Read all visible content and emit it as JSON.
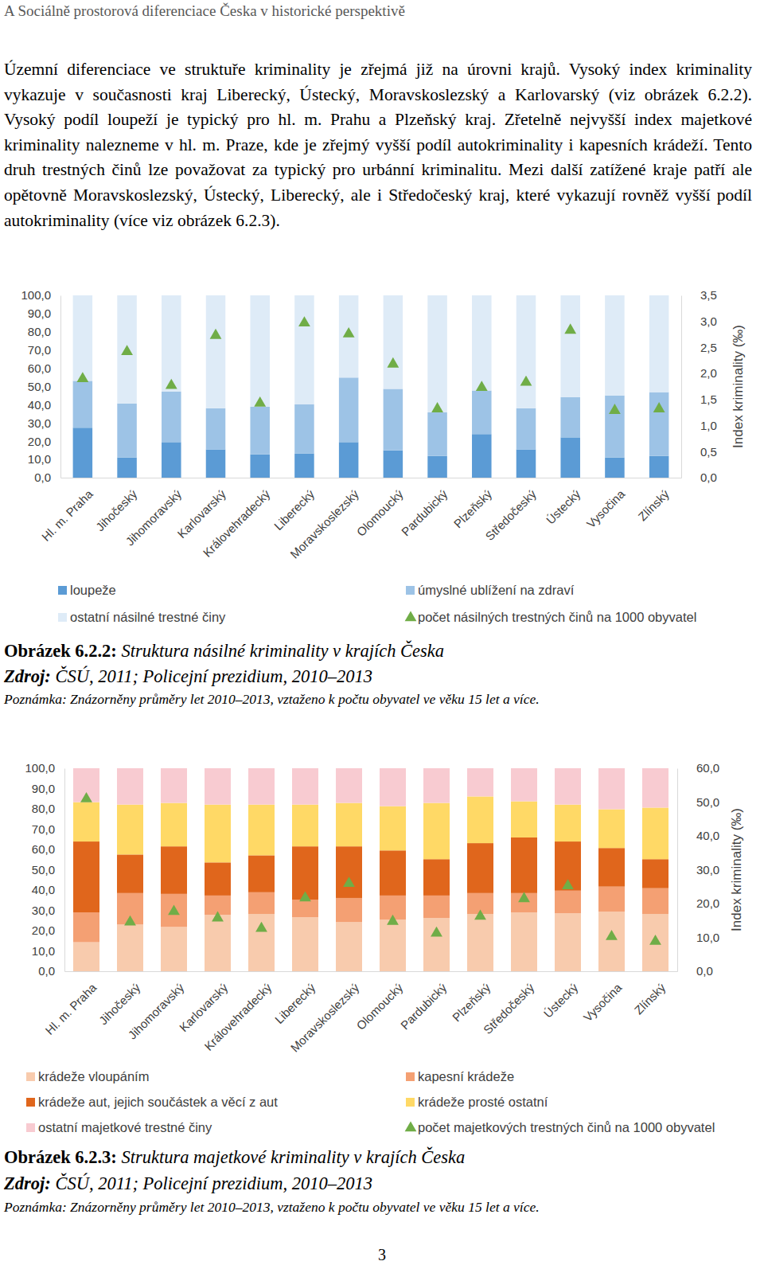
{
  "header": "A Sociálně prostorová diferenciace Česka v historické perspektivě",
  "paragraph": "Územní diferenciace ve struktuře kriminality je zřejmá již na úrovni krajů. Vysoký index kriminality vykazuje v současnosti kraj Liberecký, Ústecký, Moravskoslezský a Karlovarský (viz obrázek 6.2.2). Vysoký podíl loupeží je typický pro hl. m. Prahu a Plzeňský kraj. Zřetelně nejvyšší index majetkové kriminality nalezneme v hl. m. Praze, kde je zřejmý vyšší podíl autokriminality i kapesních krádeží. Tento druh trestných činů lze považovat za typický pro urbánní kriminalitu. Mezi další zatížené kraje patří ale opětovně Moravskoslezský, Ústecký, Liberecký, ale i Středočeský kraj, které vykazují rovněž vyšší podíl autokriminality (více viz obrázek 6.2.3).",
  "chart_data": [
    {
      "type": "bar",
      "stacked": true,
      "grid": false,
      "legend": "bottom",
      "caption_label": "Obrázek 6.2.2:",
      "title": "Struktura násilné kriminality v krajích Česka",
      "source_label": "Zdroj:",
      "source": "ČSÚ, 2011; Policejní prezidium, 2010–2013",
      "note": "Poznámka: Znázorněny průměry let 2010–2013, vztaženo k počtu obyvatel ve věku 15 let a více.",
      "categories": [
        "Hl. m. Praha",
        "Jihočeský",
        "Jihomoravský",
        "Karlovarský",
        "Královehradecký",
        "Liberecký",
        "Moravskoslezský",
        "Olomoucký",
        "Pardubický",
        "Plzeňský",
        "Středočeský",
        "Ústecký",
        "Vysočina",
        "Zlínský"
      ],
      "series": [
        {
          "name": "loupeže",
          "color": "#5b9bd5",
          "values": [
            27.4,
            11.1,
            19.5,
            15.5,
            12.8,
            13.3,
            19.5,
            15.0,
            11.9,
            23.9,
            15.5,
            22.1,
            11.1,
            11.9
          ]
        },
        {
          "name": "úmyslné ublížení na zdraví",
          "color": "#9dc3e6",
          "values": [
            25.7,
            29.6,
            27.8,
            22.6,
            26.1,
            27.0,
            35.4,
            33.7,
            23.9,
            23.9,
            22.6,
            22.1,
            34.0,
            35.0
          ]
        },
        {
          "name": "ostatní násilné trestné činy",
          "color": "#deebf7",
          "values": [
            46.9,
            59.3,
            52.7,
            61.9,
            61.1,
            59.7,
            45.1,
            51.3,
            64.2,
            52.2,
            61.9,
            55.8,
            54.9,
            53.1
          ]
        },
        {
          "name": "počet násilných trestných činů na 1000 obyvatel",
          "color": "#70ad47",
          "type": "scatter",
          "marker": "triangle",
          "axis": "y2",
          "values": [
            1.93,
            2.45,
            1.8,
            2.76,
            1.46,
            3.0,
            2.79,
            2.21,
            1.35,
            1.76,
            1.86,
            2.86,
            1.32,
            1.35
          ]
        }
      ],
      "ylim": [
        0,
        100
      ],
      "yticks": [
        {
          "value": 0,
          "label": "0,0"
        },
        {
          "value": 10,
          "label": "10,0"
        },
        {
          "value": 20,
          "label": "20,0"
        },
        {
          "value": 30,
          "label": "30,0"
        },
        {
          "value": 40,
          "label": "40,0"
        },
        {
          "value": 50,
          "label": "50,0"
        },
        {
          "value": 60,
          "label": "60,0"
        },
        {
          "value": 70,
          "label": "70,0"
        },
        {
          "value": 80,
          "label": "80,0"
        },
        {
          "value": 90,
          "label": "90,0"
        },
        {
          "value": 100,
          "label": "100,0"
        }
      ],
      "y2lim": [
        0,
        3.5
      ],
      "y2ticks": [
        {
          "value": 0,
          "label": "0,0"
        },
        {
          "value": 0.5,
          "label": "0,5"
        },
        {
          "value": 1,
          "label": "1,0"
        },
        {
          "value": 1.5,
          "label": "1,5"
        },
        {
          "value": 2,
          "label": "2,0"
        },
        {
          "value": 2.5,
          "label": "2,5"
        },
        {
          "value": 3,
          "label": "3,0"
        },
        {
          "value": 3.5,
          "label": "3,5"
        }
      ],
      "y2_label": "Index kriminality (‰)"
    },
    {
      "type": "bar",
      "stacked": true,
      "grid": false,
      "legend": "bottom",
      "caption_label": "Obrázek 6.2.3:",
      "title": "Struktura majetkové kriminality v krajích Česka",
      "source_label": "Zdroj:",
      "source": "ČSÚ, 2011; Policejní prezidium, 2010–2013",
      "note": "Poznámka: Znázorněny průměry let 2010–2013, vztaženo k počtu obyvatel ve věku 15 let a více.",
      "categories": [
        "Hl. m. Praha",
        "Jihočeský",
        "Jihomoravský",
        "Karlovarský",
        "Královehradecký",
        "Liberecký",
        "Moravskoslezský",
        "Olomoucký",
        "Pardubický",
        "Plzeňský",
        "Středočeský",
        "Ústecký",
        "Vysočina",
        "Zlínský"
      ],
      "series": [
        {
          "name": "krádeže vloupáním",
          "color": "#f8cbad",
          "values": [
            14.3,
            23.0,
            21.8,
            27.8,
            28.2,
            26.6,
            24.2,
            25.4,
            26.2,
            28.2,
            29.0,
            28.6,
            29.4,
            28.2
          ]
        },
        {
          "name": "kapesní krádeže",
          "color": "#f4a073",
          "values": [
            14.7,
            15.5,
            16.3,
            9.5,
            10.7,
            8.7,
            11.9,
            11.9,
            11.1,
            10.3,
            9.5,
            11.1,
            12.3,
            12.7
          ]
        },
        {
          "name": "krádeže aut, jejich součástek a věcí z aut",
          "color": "#e0661c",
          "values": [
            34.9,
            19.0,
            23.4,
            16.3,
            18.2,
            26.2,
            25.4,
            22.2,
            17.9,
            24.6,
            27.4,
            24.2,
            19.0,
            14.3
          ]
        },
        {
          "name": "krádeže prosté ostatní",
          "color": "#ffd966",
          "values": [
            19.4,
            24.6,
            21.4,
            28.5,
            25.0,
            20.6,
            21.4,
            21.8,
            27.7,
            23.0,
            17.8,
            18.2,
            19.1,
            25.4
          ]
        },
        {
          "name": "ostatní majetkové trestné činy",
          "color": "#f8cbd1",
          "values": [
            16.7,
            17.9,
            17.1,
            17.9,
            17.9,
            17.9,
            17.1,
            18.7,
            17.1,
            13.9,
            16.3,
            17.9,
            20.2,
            19.4
          ]
        },
        {
          "name": "počet majetkových trestných činů na 1000 obyvatel",
          "color": "#70ad47",
          "type": "scatter",
          "marker": "triangle",
          "axis": "y2",
          "values": [
            51.4,
            15.0,
            18.1,
            16.2,
            13.1,
            22.1,
            26.4,
            15.2,
            11.7,
            16.7,
            21.9,
            25.7,
            10.7,
            9.3
          ]
        }
      ],
      "ylim": [
        0,
        100
      ],
      "yticks": [
        {
          "value": 0,
          "label": "0,0"
        },
        {
          "value": 10,
          "label": "10,0"
        },
        {
          "value": 20,
          "label": "20,0"
        },
        {
          "value": 30,
          "label": "30,0"
        },
        {
          "value": 40,
          "label": "40,0"
        },
        {
          "value": 50,
          "label": "50,0"
        },
        {
          "value": 60,
          "label": "60,0"
        },
        {
          "value": 70,
          "label": "70,0"
        },
        {
          "value": 80,
          "label": "80,0"
        },
        {
          "value": 90,
          "label": "90,0"
        },
        {
          "value": 100,
          "label": "100,0"
        }
      ],
      "y2lim": [
        0,
        60
      ],
      "y2ticks": [
        {
          "value": 0,
          "label": "0,0"
        },
        {
          "value": 10,
          "label": "10,0"
        },
        {
          "value": 20,
          "label": "20,0"
        },
        {
          "value": 30,
          "label": "30,0"
        },
        {
          "value": 40,
          "label": "40,0"
        },
        {
          "value": 50,
          "label": "50,0"
        },
        {
          "value": 60,
          "label": "60,0"
        }
      ],
      "y2_label": "Index kriminality (‰)"
    }
  ],
  "page_number": "3"
}
